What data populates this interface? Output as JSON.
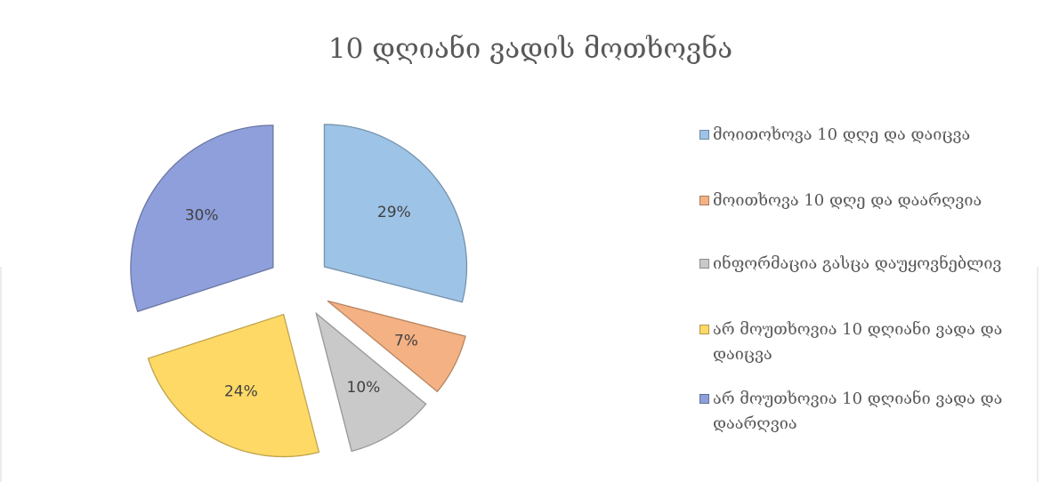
{
  "chart_data": {
    "type": "pie",
    "title": "10 დღიანი ვადის  მოთხოვნა",
    "categories": [
      "მოითოხოვა 10 დღე და დაიცვა",
      "მოითხოვა 10 დღე და დაარღვია",
      "ინფორმაცია გასცა დაუყოვნებლივ",
      "არ მოუთხოვია 10 დღიანი ვადა და დაიცვა",
      "არ მოუთხოვია 10 დღიანი ვადა და დაარღვია"
    ],
    "values": [
      29,
      7,
      10,
      24,
      30
    ],
    "value_labels": [
      "29%",
      "7%",
      "10%",
      "24%",
      "30%"
    ],
    "colors": [
      "#9dc3e6",
      "#f4b183",
      "#c9c9c9",
      "#ffd966",
      "#8e9fdb"
    ],
    "legend": "right"
  }
}
